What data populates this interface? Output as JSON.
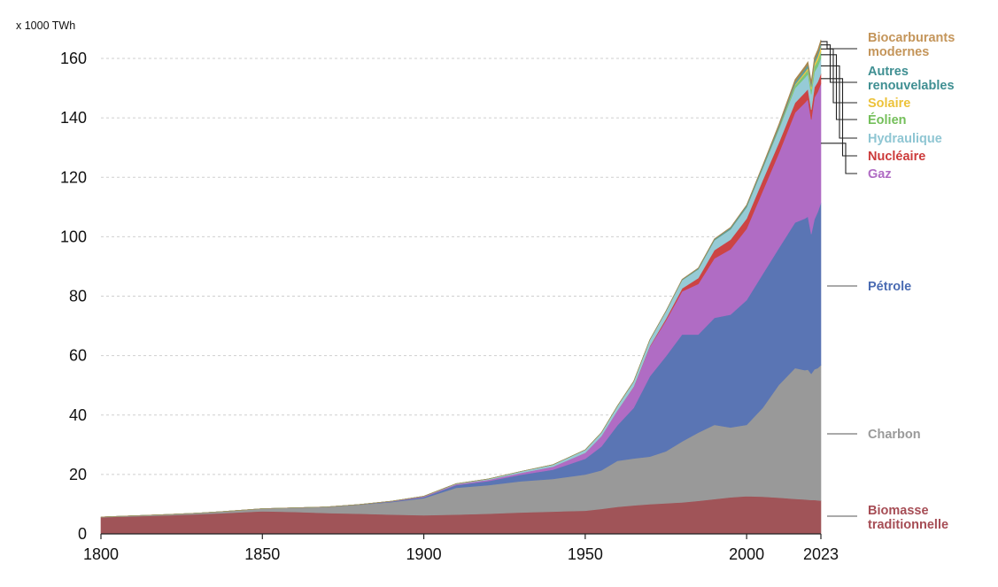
{
  "chart_data": {
    "type": "area",
    "stacked": true,
    "unit_label": "x 1000 TWh",
    "ylim": [
      0,
      165
    ],
    "yticks": [
      0,
      20,
      40,
      60,
      80,
      100,
      120,
      140,
      160
    ],
    "xlim": [
      1800,
      2023
    ],
    "xticks": [
      1800,
      1850,
      1900,
      1950,
      2000,
      2023
    ],
    "grid": "horizontal-dashed",
    "x": [
      1800,
      1810,
      1820,
      1830,
      1840,
      1850,
      1860,
      1870,
      1880,
      1890,
      1900,
      1910,
      1920,
      1930,
      1940,
      1950,
      1955,
      1960,
      1965,
      1970,
      1975,
      1980,
      1985,
      1990,
      1995,
      2000,
      2005,
      2010,
      2015,
      2018,
      2019,
      2020,
      2021,
      2022,
      2023
    ],
    "series": [
      {
        "name": "Biomasse\ntraditionnelle",
        "color": "#a05458",
        "values": [
          5.6,
          5.9,
          6.2,
          6.6,
          7.1,
          7.6,
          7.4,
          7.0,
          6.8,
          6.5,
          6.3,
          6.5,
          6.8,
          7.2,
          7.5,
          7.8,
          8.4,
          9.1,
          9.6,
          10.0,
          10.3,
          10.6,
          11.1,
          11.7,
          12.3,
          12.7,
          12.5,
          12.2,
          11.8,
          11.6,
          11.5,
          11.4,
          11.4,
          11.3,
          11.2
        ]
      },
      {
        "name": "Charbon",
        "color": "#999999",
        "values": [
          0.1,
          0.2,
          0.3,
          0.4,
          0.6,
          0.9,
          1.4,
          2.1,
          3.0,
          4.2,
          5.7,
          9.0,
          9.6,
          10.5,
          11.0,
          12.2,
          13.0,
          15.5,
          15.8,
          16.0,
          17.5,
          20.5,
          23.0,
          25.0,
          23.5,
          24.0,
          30.0,
          38.0,
          44.0,
          43.5,
          43.8,
          42.5,
          44.0,
          44.5,
          45.6
        ]
      },
      {
        "name": "Pétrole",
        "color": "#5a75b4",
        "values": [
          0,
          0,
          0,
          0,
          0,
          0,
          0,
          0,
          0.1,
          0.2,
          0.4,
          0.9,
          1.4,
          2.2,
          3.1,
          5.3,
          8.0,
          12.0,
          17.0,
          27.0,
          32.0,
          36.0,
          33.0,
          36.0,
          38.0,
          42.0,
          45.0,
          46.0,
          49.0,
          51.0,
          51.5,
          47.0,
          50.5,
          52.5,
          54.6
        ]
      },
      {
        "name": "Gaz",
        "color": "#b06cc4",
        "values": [
          0,
          0,
          0,
          0,
          0,
          0,
          0,
          0,
          0,
          0.1,
          0.2,
          0.3,
          0.4,
          0.6,
          1.0,
          2.0,
          3.5,
          5.0,
          7.0,
          10.0,
          12.0,
          14.5,
          17.0,
          20.0,
          22.0,
          24.0,
          28.0,
          32.0,
          37.0,
          39.0,
          39.5,
          38.5,
          41.0,
          40.5,
          40.1
        ]
      },
      {
        "name": "Nucléaire",
        "color": "#cc4444",
        "values": [
          0,
          0,
          0,
          0,
          0,
          0,
          0,
          0,
          0,
          0,
          0,
          0,
          0,
          0,
          0,
          0,
          0,
          0,
          0.1,
          0.2,
          0.6,
          1.0,
          2.0,
          2.8,
          3.2,
          3.4,
          3.6,
          3.5,
          3.3,
          3.4,
          3.4,
          3.3,
          3.4,
          3.3,
          3.4
        ]
      },
      {
        "name": "Hydraulique",
        "color": "#96cbd6",
        "values": [
          0,
          0,
          0,
          0,
          0,
          0,
          0,
          0,
          0,
          0,
          0.1,
          0.2,
          0.3,
          0.5,
          0.7,
          1.0,
          1.2,
          1.5,
          1.8,
          2.1,
          2.5,
          2.8,
          3.0,
          3.3,
          3.5,
          3.8,
          4.0,
          4.5,
          4.9,
          5.0,
          5.1,
          5.2,
          5.1,
          5.2,
          5.2
        ]
      },
      {
        "name": "Éolien",
        "color": "#7bc67a",
        "values": [
          0,
          0,
          0,
          0,
          0,
          0,
          0,
          0,
          0,
          0,
          0,
          0,
          0,
          0,
          0,
          0,
          0,
          0,
          0,
          0,
          0,
          0,
          0,
          0,
          0,
          0.03,
          0.1,
          0.3,
          0.9,
          1.3,
          1.4,
          1.6,
          1.9,
          2.1,
          2.3
        ]
      },
      {
        "name": "Solaire",
        "color": "#f2c744",
        "values": [
          0,
          0,
          0,
          0,
          0,
          0,
          0,
          0,
          0,
          0,
          0,
          0,
          0,
          0,
          0,
          0,
          0,
          0,
          0,
          0,
          0,
          0,
          0,
          0,
          0,
          0,
          0,
          0.04,
          0.3,
          0.6,
          0.7,
          0.9,
          1.0,
          1.3,
          1.6
        ]
      },
      {
        "name": "Autres\nrenouvelables",
        "color": "#5a9e9e",
        "values": [
          0,
          0,
          0,
          0,
          0,
          0,
          0,
          0,
          0,
          0,
          0,
          0,
          0,
          0,
          0,
          0,
          0,
          0,
          0,
          0.05,
          0.1,
          0.2,
          0.3,
          0.4,
          0.5,
          0.6,
          0.7,
          0.8,
          0.9,
          1.0,
          1.0,
          1.0,
          1.1,
          1.1,
          1.1
        ]
      },
      {
        "name": "Biocarburants\nmodernes",
        "color": "#a88850",
        "values": [
          0,
          0,
          0,
          0,
          0,
          0,
          0,
          0,
          0,
          0,
          0,
          0,
          0,
          0,
          0,
          0,
          0,
          0,
          0,
          0,
          0,
          0.05,
          0.1,
          0.1,
          0.15,
          0.2,
          0.3,
          0.6,
          0.8,
          0.9,
          1.0,
          0.9,
          1.0,
          1.1,
          1.2
        ]
      }
    ],
    "legend": [
      {
        "label": "Biocarburants\nmodernes",
        "color": "#c4955a"
      },
      {
        "label": "Autres\nrenouvelables",
        "color": "#3f8f92"
      },
      {
        "label": "Solaire",
        "color": "#ecc23a"
      },
      {
        "label": "Éolien",
        "color": "#74bf5a"
      },
      {
        "label": "Hydraulique",
        "color": "#8fc6d3"
      },
      {
        "label": "Nucléaire",
        "color": "#cc3b3b"
      },
      {
        "label": "Gaz",
        "color": "#b06cc4"
      },
      {
        "label": "Pétrole",
        "color": "#4a6bb2"
      },
      {
        "label": "Charbon",
        "color": "#9a9a9a"
      },
      {
        "label": "Biomasse\ntraditionnelle",
        "color": "#a64d55"
      }
    ]
  }
}
